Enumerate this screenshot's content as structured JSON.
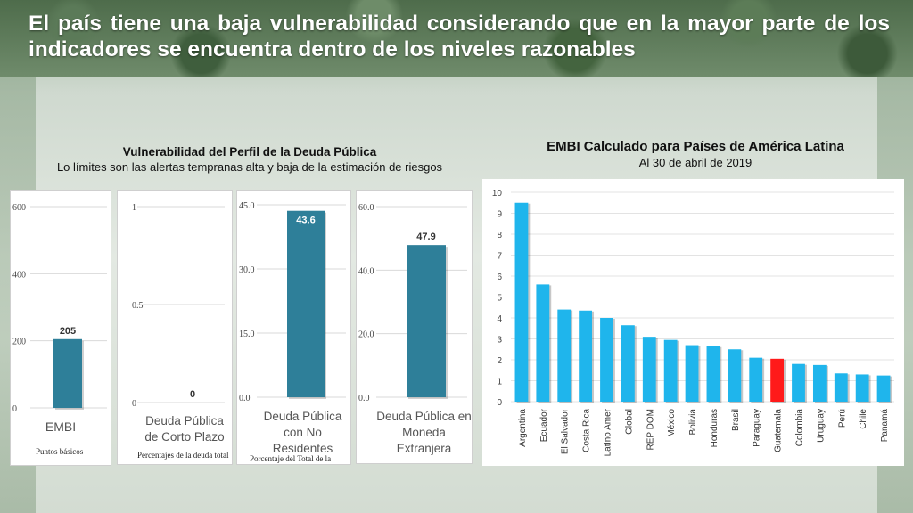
{
  "slide": {
    "title": "El país tiene una baja vulnerabilidad considerando que en la mayor parte de los indicadores se encuentra dentro de los niveles razonables"
  },
  "left_section": {
    "title": "Vulnerabilidad del Perfil de la Deuda Pública",
    "subtitle": "Lo límites son las alertas tempranas alta y baja de la estimación de riesgos"
  },
  "right_section": {
    "title": "EMBI Calculado para Países de América Latina",
    "subtitle": "Al 30 de abril de 2019"
  },
  "chart_data": [
    {
      "type": "bar",
      "categories": [
        "EMBI"
      ],
      "values": [
        205
      ],
      "value_labels": [
        "205"
      ],
      "unit_note": "Puntos básicos",
      "ylim": [
        0,
        600
      ],
      "yticks": [
        "0",
        "200",
        "400",
        "600"
      ],
      "color": "#2e7f99"
    },
    {
      "type": "bar",
      "categories": [
        "Deuda Pública de Corto Plazo"
      ],
      "values": [
        0
      ],
      "value_labels": [
        "0"
      ],
      "unit_note": "Percentajes de la deuda total",
      "ylim": [
        0,
        1
      ],
      "yticks": [
        "0",
        "0.5",
        "1"
      ],
      "color": "#2e7f99"
    },
    {
      "type": "bar",
      "categories": [
        "Deuda Pública con No Residentes"
      ],
      "values": [
        43.6
      ],
      "value_labels": [
        "43.6"
      ],
      "unit_note": "Porcentaje del Total de la Deuda",
      "ylim": [
        0,
        45
      ],
      "yticks": [
        "0.0",
        "15.0",
        "30.0",
        "45.0"
      ],
      "color": "#2e7f99"
    },
    {
      "type": "bar",
      "categories": [
        "Deuda Pública en Moneda Extranjera"
      ],
      "values": [
        47.9
      ],
      "value_labels": [
        "47.9"
      ],
      "unit_note": "",
      "ylim": [
        0,
        60
      ],
      "yticks": [
        "0.0",
        "20.0",
        "40.0",
        "60.0"
      ],
      "color": "#2e7f99"
    },
    {
      "type": "bar",
      "categories": [
        "Argentina",
        "Ecuador",
        "El Salvador",
        "Costa Rica",
        "Latino Amer",
        "Global",
        "REP DOM",
        "México",
        "Bolivia",
        "Honduras",
        "Brasil",
        "Paraguay",
        "Guatemala",
        "Colombia",
        "Uruguay",
        "Perú",
        "Chile",
        "Panamá"
      ],
      "values": [
        9.5,
        5.6,
        4.4,
        4.35,
        4.0,
        3.65,
        3.1,
        2.95,
        2.7,
        2.65,
        2.5,
        2.1,
        2.05,
        1.8,
        1.75,
        1.35,
        1.3,
        1.25
      ],
      "highlight": "Guatemala",
      "ylim": [
        0,
        10
      ],
      "yticks": [
        "0",
        "1",
        "2",
        "3",
        "4",
        "5",
        "6",
        "7",
        "8",
        "9",
        "10"
      ],
      "color": "#1fb5ec",
      "highlight_color": "#ff1a1a"
    }
  ]
}
